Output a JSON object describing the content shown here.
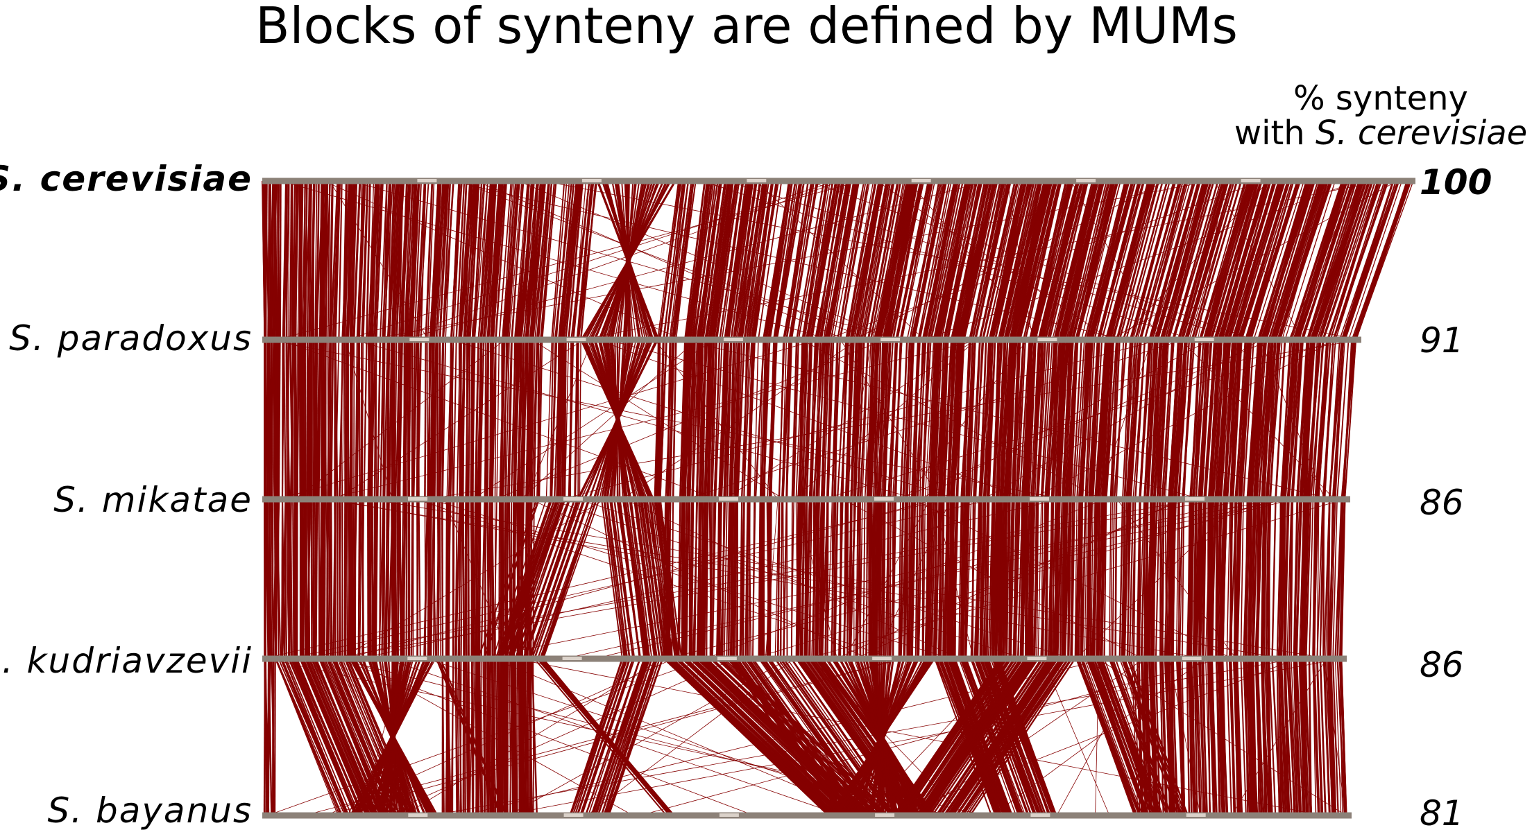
{
  "title": "Blocks of synteny are defined by MUMs",
  "pct_header": {
    "line1": "% synteny",
    "line2_prefix": "with ",
    "line2_species": "S. cerevisiae"
  },
  "genomes": [
    {
      "name": "S. cerevisiae",
      "pct": "100",
      "reference": true
    },
    {
      "name": "S. paradoxus",
      "pct": "91",
      "reference": false
    },
    {
      "name": "S. mikatae",
      "pct": "86",
      "reference": false
    },
    {
      "name": "S. kudriavzevii",
      "pct": "86",
      "reference": false
    },
    {
      "name": "S. bayanus",
      "pct": "81",
      "reference": false
    }
  ],
  "colors": {
    "link": "#850000",
    "chromosome_bar": "#8c8178"
  }
}
